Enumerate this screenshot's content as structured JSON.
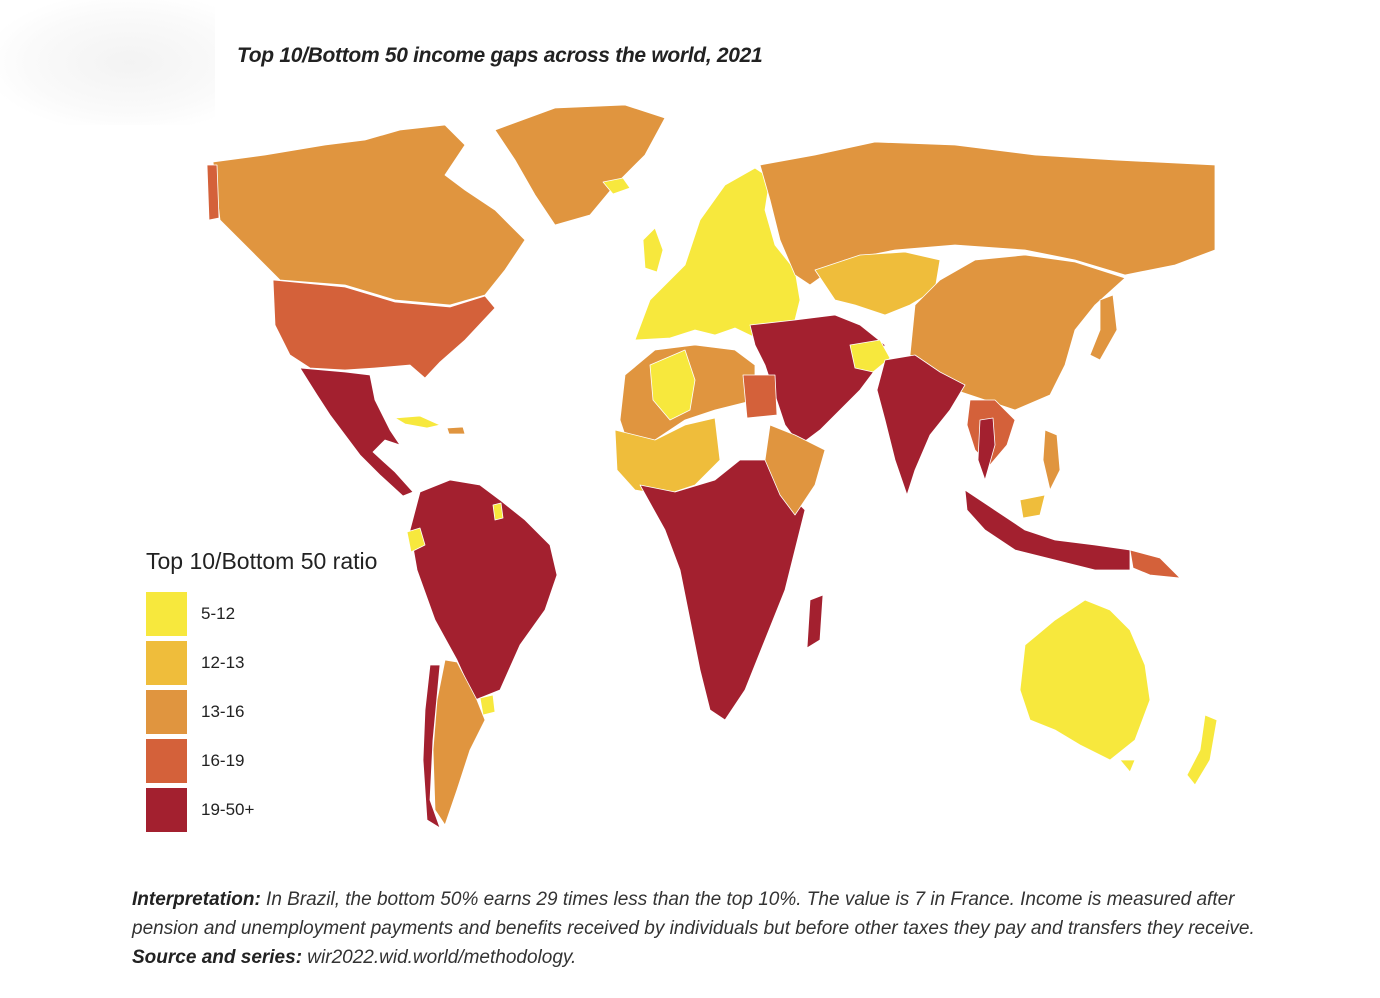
{
  "title": "Top 10/Bottom 50 income gaps across the world, 2021",
  "legend": {
    "title": "Top 10/Bottom 50 ratio",
    "items": [
      {
        "label": "5-12",
        "color": "#f7e83d"
      },
      {
        "label": "12-13",
        "color": "#efbd3b"
      },
      {
        "label": "13-16",
        "color": "#e0953f"
      },
      {
        "label": "16-19",
        "color": "#d4613a"
      },
      {
        "label": "19-50+",
        "color": "#a3202f"
      }
    ]
  },
  "note": {
    "interpretation_label": "Interpretation:",
    "interpretation_text": " In Brazil, the bottom 50% earns 29 times less than the top 10%. The value is 7 in France. Income is measured after pension and unemployment payments and benefits received by individuals but before other taxes they pay and transfers they receive. ",
    "source_label": "Source and series:",
    "source_text": " wir2022.wid.world/methodology."
  },
  "colors": {
    "c1": "#f7e83d",
    "c2": "#efbd3b",
    "c3": "#e0953f",
    "c4": "#d4613a",
    "c5": "#a3202f",
    "border": "#ffffff",
    "ocean": "#ffffff"
  }
}
